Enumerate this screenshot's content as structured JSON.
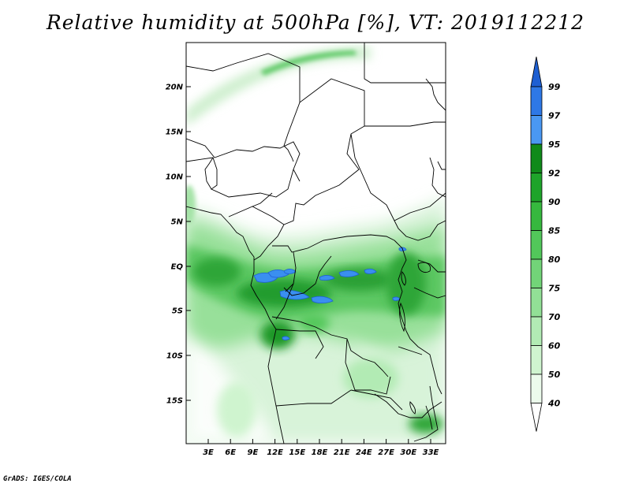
{
  "title": "Relative humidity at 500hPa [%], VT: 2019112212",
  "credit": "GrADS: IGES/COLA",
  "colors": {
    "background": "#ffffff",
    "border": "#000000",
    "green_light": "#e6f8e6",
    "green_dark": "#1e8c28",
    "blue_light": "#3a8ff0",
    "blue_dark": "#1f5fd6"
  },
  "map": {
    "lat_labels": [
      "20N",
      "15N",
      "10N",
      "5N",
      "EQ",
      "5S",
      "10S",
      "15S"
    ],
    "lon_labels": [
      "3E",
      "6E",
      "9E",
      "12E",
      "15E",
      "18E",
      "21E",
      "24E",
      "27E",
      "30E",
      "33E"
    ]
  },
  "colorbar": {
    "labels": [
      "99",
      "97",
      "95",
      "92",
      "90",
      "85",
      "80",
      "75",
      "70",
      "60",
      "50",
      "40"
    ],
    "colors": [
      "#1e5fd2",
      "#2e78e6",
      "#4a98f2",
      "#108a1a",
      "#1ea42a",
      "#36b83e",
      "#52c75a",
      "#72d478",
      "#92e096",
      "#b2ebb4",
      "#cff4cf",
      "#ecfbec"
    ]
  }
}
